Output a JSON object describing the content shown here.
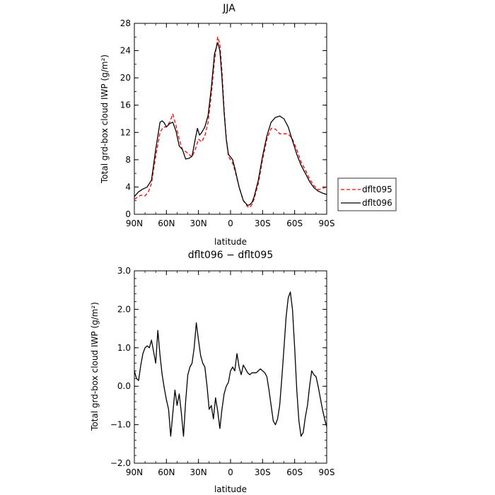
{
  "chart_data": [
    {
      "type": "line",
      "title": "JJA",
      "xlabel": "latitude",
      "ylabel": "Total grd-box cloud IWP (g/m²)",
      "xlim": [
        90,
        -90
      ],
      "ylim": [
        0,
        28
      ],
      "x_ticks": [
        90,
        60,
        30,
        0,
        -30,
        -60,
        -90
      ],
      "x_tick_labels": [
        "90N",
        "60N",
        "30N",
        "0",
        "30S",
        "60S",
        "90S"
      ],
      "y_ticks": [
        0,
        4,
        8,
        12,
        16,
        20,
        24,
        28
      ],
      "y_tick_labels": [
        "0",
        "4",
        "8",
        "12",
        "16",
        "20",
        "24",
        "28"
      ],
      "legend_position": "right",
      "series": [
        {
          "name": "dflt095",
          "color": "#ff0000",
          "dash": "dashed",
          "x": [
            90,
            84,
            80,
            77,
            74,
            70,
            66,
            63,
            60,
            57,
            54,
            51,
            48,
            45,
            42,
            39,
            36,
            33,
            30,
            27,
            24,
            21,
            18,
            15,
            12,
            10,
            8,
            6,
            4,
            2,
            0,
            -2,
            -4,
            -8,
            -12,
            -16,
            -18,
            -20,
            -22,
            -26,
            -30,
            -34,
            -38,
            -42,
            -46,
            -50,
            -54,
            -58,
            -62,
            -66,
            -70,
            -74,
            -78,
            -82,
            -86,
            -90
          ],
          "y": [
            2.2,
            2.8,
            2.7,
            3.2,
            4.5,
            8.5,
            12.0,
            12.8,
            12.8,
            13.5,
            14.7,
            13.0,
            11.0,
            9.5,
            9.2,
            8.8,
            8.4,
            9.5,
            11.0,
            10.6,
            11.5,
            13.5,
            17.5,
            22.5,
            26.0,
            25.0,
            21.0,
            15.5,
            11.0,
            8.5,
            8.0,
            7.5,
            6.5,
            4.0,
            2.0,
            1.1,
            1.0,
            1.4,
            2.2,
            4.5,
            8.0,
            11.0,
            12.6,
            12.5,
            11.8,
            11.8,
            11.8,
            11.0,
            9.5,
            7.7,
            6.5,
            5.2,
            4.2,
            3.6,
            3.8,
            4.0
          ]
        },
        {
          "name": "dflt096",
          "color": "#000000",
          "dash": "solid",
          "x": [
            90,
            86,
            82,
            78,
            74,
            70,
            66,
            64,
            62,
            60,
            57,
            54,
            51,
            48,
            45,
            42,
            39,
            36,
            33,
            31,
            29,
            27,
            24,
            21,
            18,
            15,
            12,
            10,
            8,
            6,
            4,
            2,
            0,
            -2,
            -4,
            -8,
            -12,
            -16,
            -18,
            -20,
            -22,
            -26,
            -30,
            -34,
            -38,
            -42,
            -46,
            -50,
            -54,
            -58,
            -62,
            -66,
            -70,
            -74,
            -78,
            -82,
            -86,
            -90
          ],
          "y": [
            2.6,
            3.3,
            3.7,
            4.0,
            5.0,
            9.5,
            13.5,
            13.7,
            13.4,
            12.8,
            13.3,
            13.5,
            12.2,
            10.0,
            9.5,
            8.1,
            8.2,
            8.5,
            11.0,
            12.6,
            11.6,
            12.0,
            12.8,
            14.5,
            18.5,
            23.5,
            25.2,
            24.0,
            20.0,
            15.0,
            11.0,
            8.8,
            8.4,
            8.0,
            6.8,
            4.0,
            2.0,
            1.3,
            1.4,
            1.7,
            2.5,
            5.0,
            8.5,
            11.5,
            13.5,
            14.2,
            14.4,
            14.0,
            12.8,
            10.8,
            8.8,
            7.2,
            6.0,
            4.8,
            3.9,
            3.4,
            3.1,
            2.9
          ]
        }
      ]
    },
    {
      "type": "line",
      "title": "dflt096 − dflt095",
      "xlabel": "latitude",
      "ylabel": "Total grd-box cloud IWP (g/m²)",
      "xlim": [
        90,
        -90
      ],
      "ylim": [
        -2.0,
        3.0
      ],
      "x_ticks": [
        90,
        60,
        30,
        0,
        -30,
        -60,
        -90
      ],
      "x_tick_labels": [
        "90N",
        "60N",
        "30N",
        "0",
        "30S",
        "60S",
        "90S"
      ],
      "y_ticks": [
        -2.0,
        -1.0,
        0.0,
        1.0,
        2.0,
        3.0
      ],
      "y_tick_labels": [
        "−2.0",
        "−1.0",
        "0.0",
        "1.0",
        "2.0",
        "3.0"
      ],
      "series": [
        {
          "name": "",
          "color": "#000000",
          "x": [
            90,
            88,
            86,
            84,
            82,
            80,
            78,
            76,
            74,
            72,
            70,
            68,
            66,
            64,
            62,
            60,
            58,
            56,
            54,
            52,
            50,
            48,
            46,
            44,
            42,
            40,
            38,
            36,
            34,
            32,
            30,
            28,
            26,
            24,
            22,
            20,
            18,
            16,
            14,
            12,
            10,
            8,
            6,
            4,
            2,
            0,
            -2,
            -4,
            -6,
            -8,
            -10,
            -12,
            -14,
            -16,
            -18,
            -20,
            -22,
            -24,
            -26,
            -28,
            -30,
            -32,
            -34,
            -36,
            -38,
            -40,
            -42,
            -44,
            -46,
            -48,
            -50,
            -52,
            -54,
            -56,
            -58,
            -60,
            -62,
            -64,
            -66,
            -68,
            -70,
            -72,
            -74,
            -76,
            -78,
            -80,
            -82,
            -84,
            -86,
            -88,
            -90
          ],
          "y": [
            0.4,
            0.2,
            0.15,
            0.55,
            0.85,
            1.0,
            1.05,
            1.0,
            1.2,
            0.9,
            0.6,
            1.45,
            0.8,
            0.3,
            -0.05,
            -0.35,
            -0.6,
            -1.3,
            -0.7,
            -0.1,
            -0.5,
            -0.2,
            -0.7,
            -1.3,
            -0.4,
            0.3,
            0.5,
            0.6,
            1.0,
            1.65,
            1.2,
            0.8,
            0.6,
            0.5,
            0.0,
            -0.6,
            -0.5,
            -0.85,
            -0.3,
            -0.65,
            -1.1,
            -0.6,
            -0.2,
            0.0,
            0.1,
            0.4,
            0.5,
            0.4,
            0.85,
            0.5,
            0.3,
            0.55,
            0.45,
            0.35,
            0.3,
            0.35,
            0.35,
            0.35,
            0.4,
            0.45,
            0.4,
            0.35,
            0.25,
            -0.1,
            -0.5,
            -0.9,
            -1.0,
            -0.85,
            -0.5,
            0.2,
            1.0,
            1.8,
            2.3,
            2.45,
            2.0,
            1.0,
            -0.1,
            -0.9,
            -1.3,
            -1.2,
            -0.8,
            -0.5,
            0.0,
            0.4,
            0.3,
            0.25,
            0.0,
            -0.3,
            -0.6,
            -0.85,
            -1.05
          ]
        }
      ]
    }
  ],
  "legend": {
    "items": [
      {
        "label": "dflt095"
      },
      {
        "label": "dflt096"
      }
    ]
  }
}
